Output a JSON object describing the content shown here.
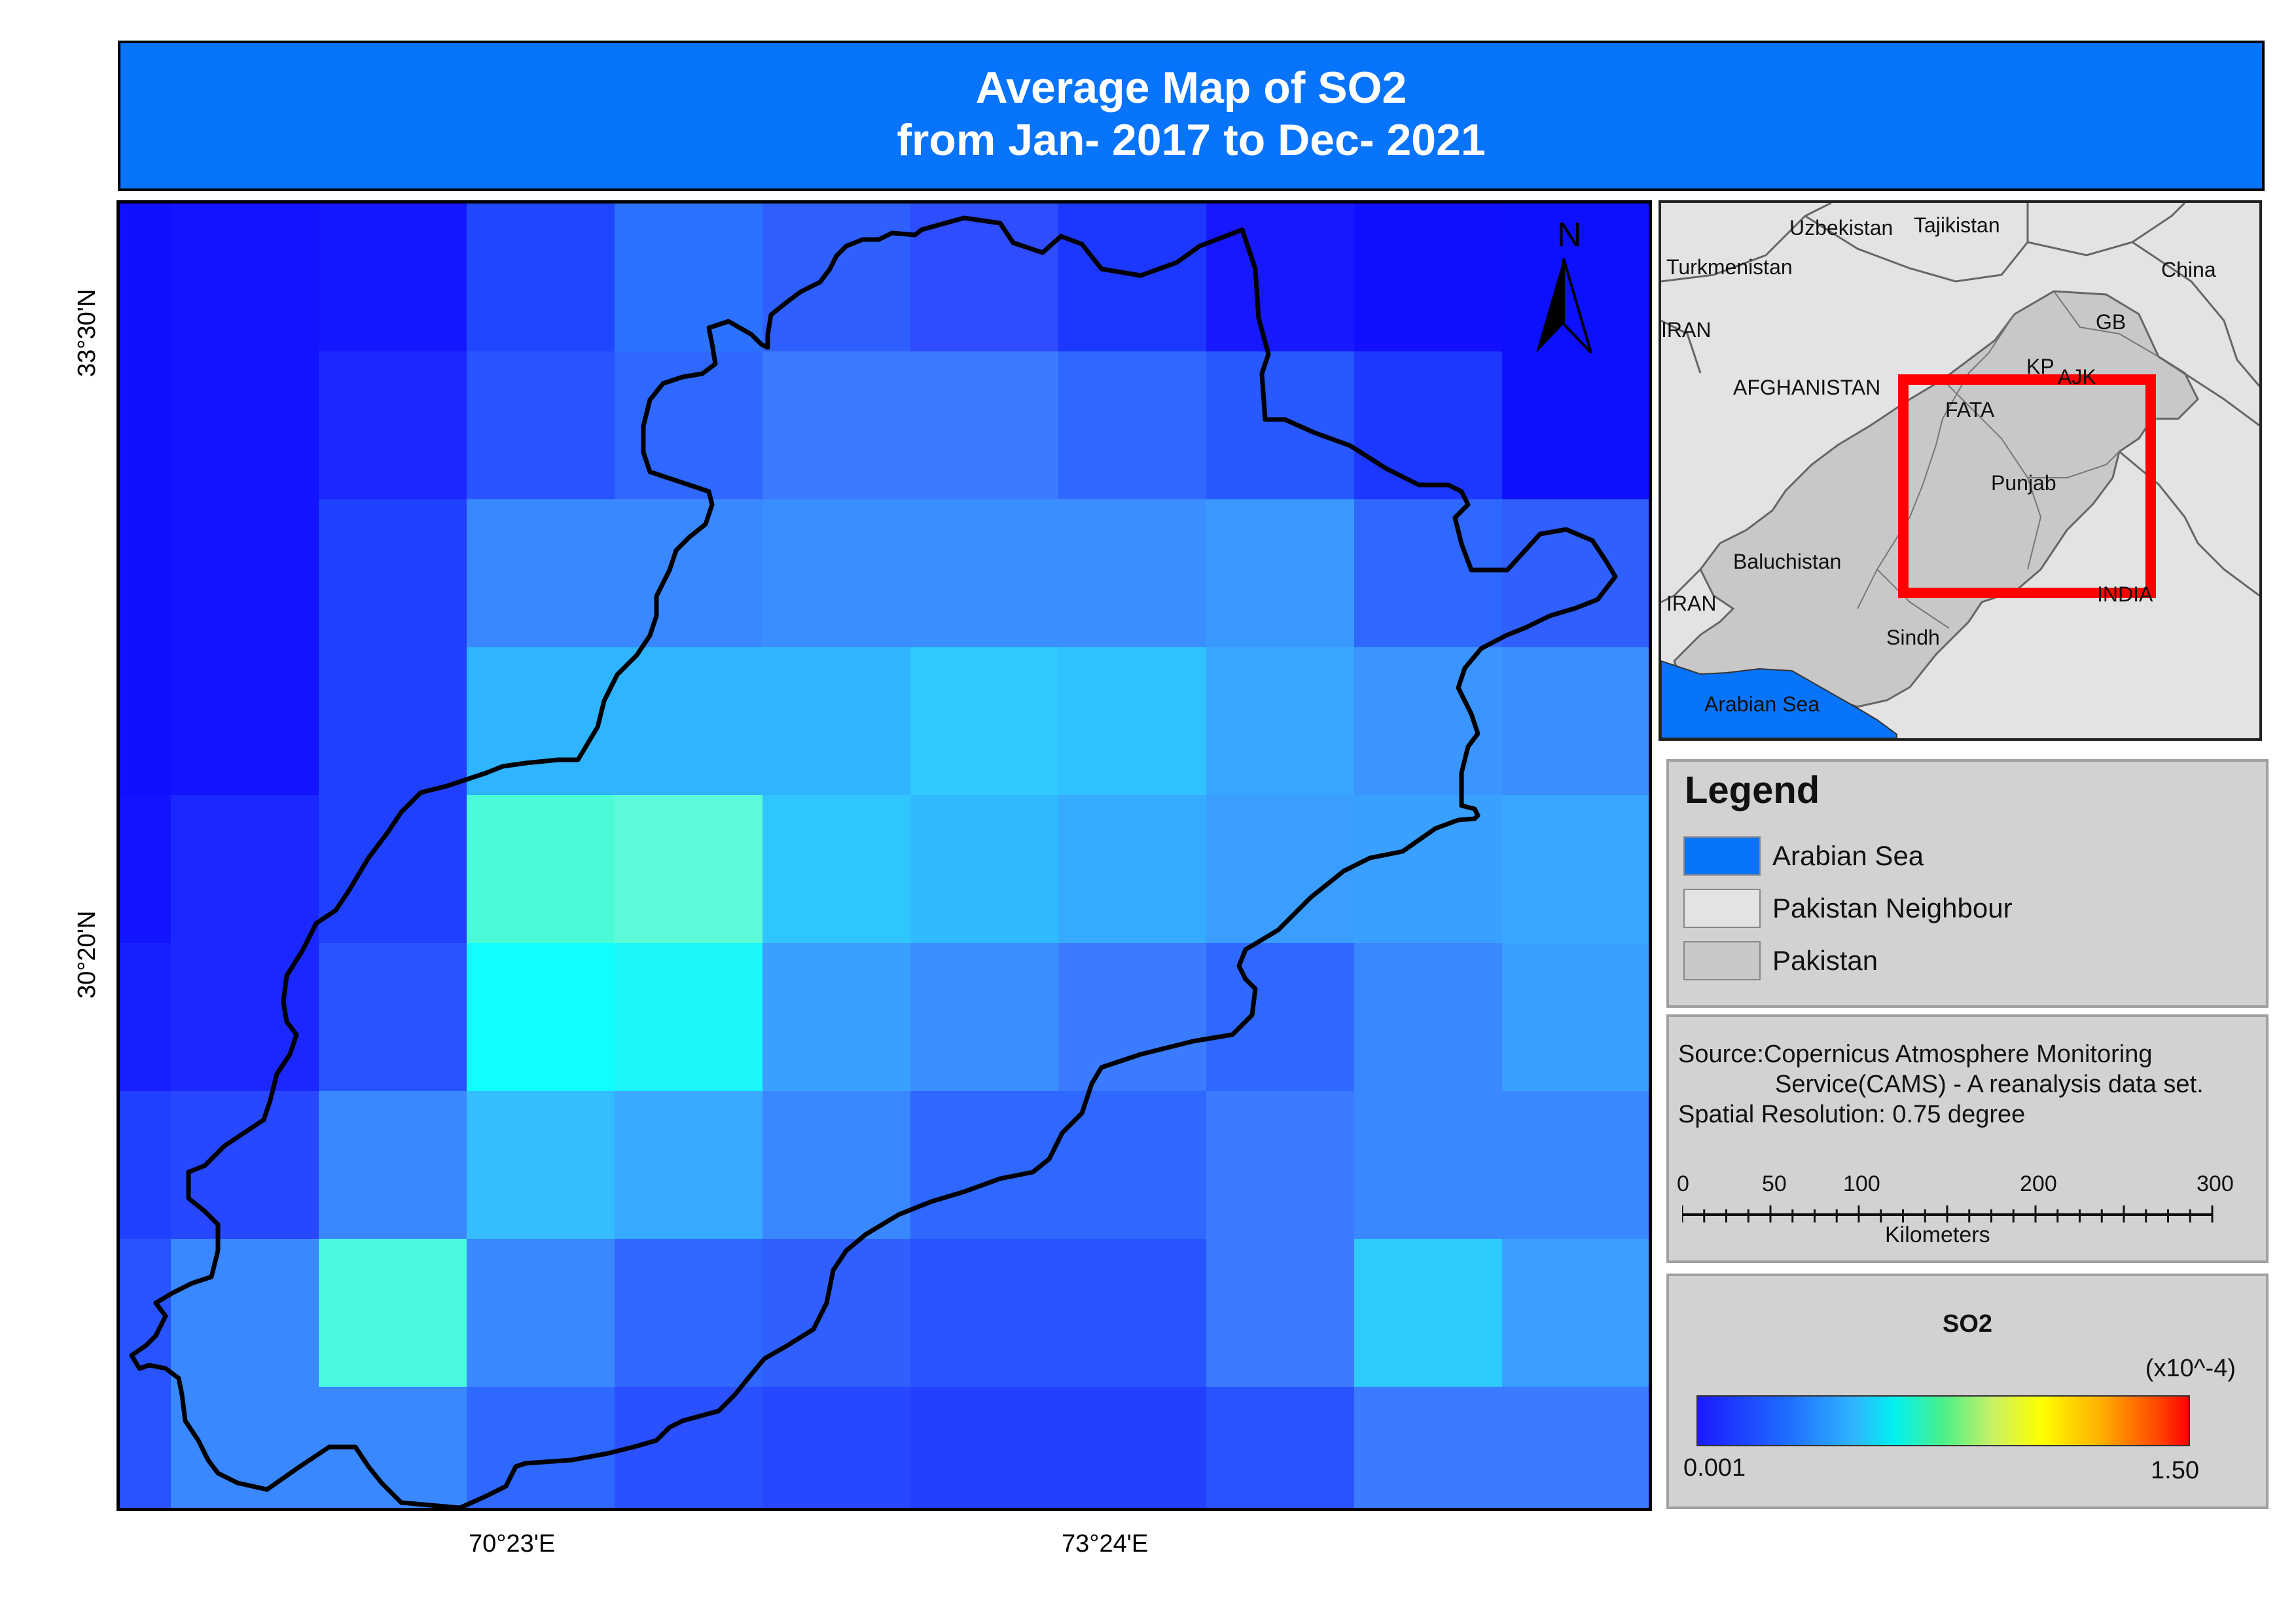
{
  "title": {
    "line1": "Average Map of SO2",
    "line2": "from Jan- 2017 to Dec- 2021"
  },
  "map": {
    "lat_labels": [
      "33°30'N",
      "30°20'N"
    ],
    "lon_labels": [
      "70°23'E",
      "73°24'E"
    ],
    "north_label": "N",
    "grid_colors": [
      [
        "#0f10ff",
        "#1214ff",
        "#1418ff",
        "#1f47ff",
        "#2b72ff",
        "#2f60ff",
        "#2f4cff",
        "#1c38ff",
        "#1818ff",
        "#1010ff",
        "#0c10ff"
      ],
      [
        "#0f10ff",
        "#1214ff",
        "#1a28ff",
        "#2854ff",
        "#2f68ff",
        "#3a7bff",
        "#3a7bff",
        "#2f68ff",
        "#2858ff",
        "#1c38ff",
        "#0c10ff"
      ],
      [
        "#0f10ff",
        "#1214ff",
        "#2040ff",
        "#3a88ff",
        "#3a88ff",
        "#3a8eff",
        "#3a8eff",
        "#3a8eff",
        "#3a99ff",
        "#2f68ff",
        "#2f60ff"
      ],
      [
        "#0f10ff",
        "#1214ff",
        "#2040ff",
        "#2fb4ff",
        "#2fb4ff",
        "#2fb4ff",
        "#2fc8ff",
        "#2fc2ff",
        "#3aa6ff",
        "#3a95ff",
        "#3a8eff"
      ],
      [
        "#1214ff",
        "#1a28ff",
        "#2040ff",
        "#4cfad8",
        "#5cfad8",
        "#2fc6ff",
        "#2fbaff",
        "#35aaff",
        "#3a9eff",
        "#3aa0ff",
        "#3aa6ff"
      ],
      [
        "#1620ff",
        "#1a28ff",
        "#2854ff",
        "#10fefe",
        "#1af8fa",
        "#3aa0ff",
        "#3a8eff",
        "#3a7bff",
        "#2f68ff",
        "#3a88ff",
        "#3aa0ff"
      ],
      [
        "#2040ff",
        "#2848ff",
        "#3a88ff",
        "#35beff",
        "#38aaff",
        "#3a88ff",
        "#2f68ff",
        "#2f68ff",
        "#3a7bff",
        "#3a88ff",
        "#3a88ff"
      ],
      [
        "#2854ff",
        "#3a88ff",
        "#48f8e0",
        "#3a88ff",
        "#2f68ff",
        "#2f60ff",
        "#2854ff",
        "#2854ff",
        "#3a7bff",
        "#2fcbff",
        "#3a9eff"
      ],
      [
        "#2854ff",
        "#3a88ff",
        "#3a88ff",
        "#2f68ff",
        "#2b50ff",
        "#2848ff",
        "#2440ff",
        "#2440ff",
        "#2854ff",
        "#3a7bff",
        "#3a7bff"
      ]
    ]
  },
  "inset": {
    "labels": {
      "uzbekistan": "Uzbekistan",
      "tajikistan": "Tajikistan",
      "turkmenistan": "Turkmenistan",
      "china": "China",
      "iran_top": "IRAN",
      "gb": "GB",
      "kp": "KP",
      "ajk": "AJK",
      "afghanistan": "AFGHANISTAN",
      "fata": "FATA",
      "punjab": "Punjab",
      "baluchistan": "Baluchistan",
      "iran_bottom": "IRAN",
      "india": "INDIA",
      "sindh": "Sindh",
      "arabian_sea": "Arabian Sea"
    },
    "colors": {
      "neighbour": "#e3e3e3",
      "pakistan": "#c8c8c8",
      "sea": "#0873fb",
      "highlight": "#ff0000"
    }
  },
  "legend": {
    "title": "Legend",
    "items": [
      {
        "label": "Arabian Sea",
        "color": "#0873fb"
      },
      {
        "label": "Pakistan Neighbour",
        "color": "#e3e3e3"
      },
      {
        "label": "Pakistan",
        "color": "#c8c8c8"
      }
    ]
  },
  "source": {
    "line1": "Source:Copernicus Atmosphere Monitoring",
    "line2": "Service(CAMS) - A reanalysis data set.",
    "line3": "Spatial Resolution: 0.75 degree",
    "scale_ticks": [
      "0",
      "50",
      "100",
      "200",
      "300"
    ],
    "scale_unit": "Kilometers"
  },
  "colorbar": {
    "title": "SO2",
    "unit": "(x10^-4)",
    "min": "0.001",
    "max": "1.50"
  }
}
